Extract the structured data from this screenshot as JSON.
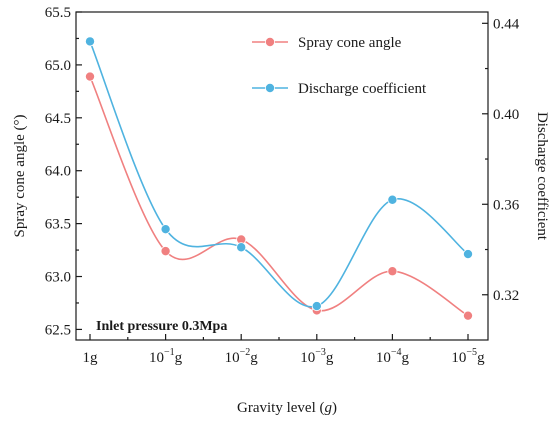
{
  "chart_data": {
    "type": "line",
    "categories": [
      "1g",
      "10-1g",
      "10-2g",
      "10-3g",
      "10-4g",
      "10-5g"
    ],
    "category_labels": [
      {
        "base": "1g",
        "exp": "",
        "unit": ""
      },
      {
        "base": "10",
        "exp": "−1",
        "unit": "g"
      },
      {
        "base": "10",
        "exp": "−2",
        "unit": "g"
      },
      {
        "base": "10",
        "exp": "−3",
        "unit": "g"
      },
      {
        "base": "10",
        "exp": "−4",
        "unit": "g"
      },
      {
        "base": "10",
        "exp": "−5",
        "unit": "g"
      }
    ],
    "xlabel": {
      "text": "Gravity level (",
      "italic": "g",
      "suffix": ")"
    },
    "ylabel_left": "Spray cone angle (°)",
    "ylabel_right": "Discharge  coefficient",
    "ylim_left": [
      62.4,
      65.5
    ],
    "yticks_left": [
      "62.5",
      "63.0",
      "63.5",
      "64.0",
      "64.5",
      "65.0",
      "65.5"
    ],
    "ylim_right": [
      0.3,
      0.445
    ],
    "yticks_right": [
      "0.32",
      "0.36",
      "0.40",
      "0.44"
    ],
    "series": [
      {
        "name": "Spray cone angle",
        "axis": "left",
        "color": "#f08080",
        "values": [
          64.89,
          63.24,
          63.35,
          62.68,
          63.05,
          62.63
        ]
      },
      {
        "name": "Discharge coefficient",
        "axis": "right",
        "color": "#4fb3e0",
        "values": [
          0.432,
          0.349,
          0.341,
          0.315,
          0.362,
          0.338
        ]
      }
    ],
    "annotation": "Inlet pressure 0.3Mpa",
    "legend_position": "top-right",
    "grid": false
  }
}
